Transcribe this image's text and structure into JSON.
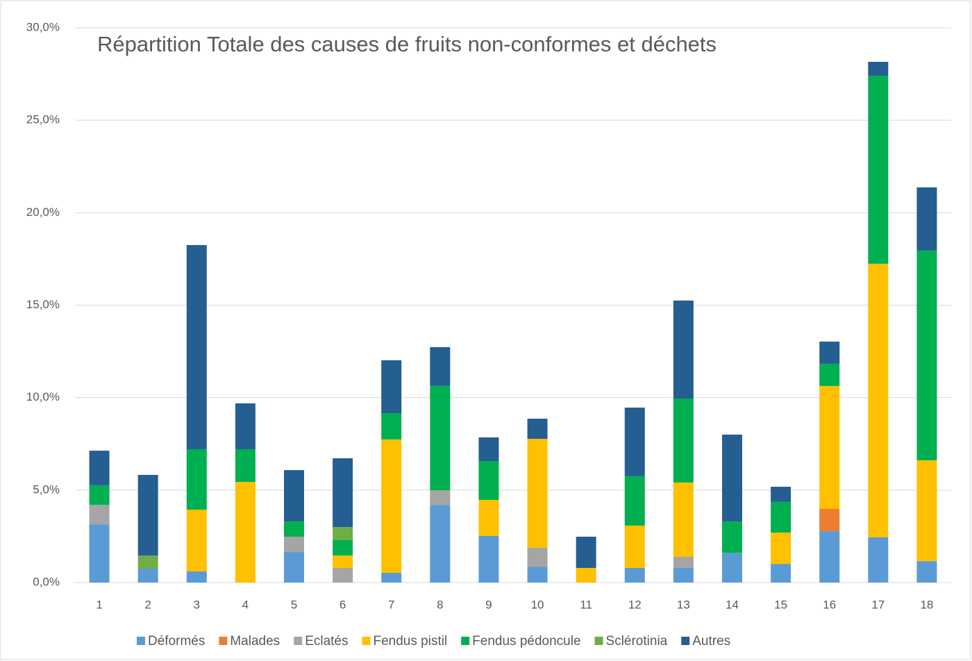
{
  "chart_data": {
    "type": "stacked_bar",
    "title": "Répartition Totale des causes de fruits non-conformes et déchets",
    "categories": [
      "1",
      "2",
      "3",
      "4",
      "5",
      "6",
      "7",
      "8",
      "9",
      "10",
      "11",
      "12",
      "13",
      "14",
      "15",
      "16",
      "17",
      "18"
    ],
    "series": [
      {
        "name": "Déformés",
        "color": "#5b9bd5",
        "values": [
          3.15,
          0.75,
          0.6,
          0,
          1.65,
          0,
          0.53,
          4.2,
          2.52,
          0.86,
          0,
          0.79,
          0.79,
          1.61,
          1.01,
          2.78,
          2.44,
          1.16
        ]
      },
      {
        "name": "Malades",
        "color": "#ed7d31",
        "values": [
          0,
          0,
          0,
          0,
          0,
          0,
          0,
          0,
          0,
          0,
          0,
          0,
          0,
          0,
          0,
          1.2,
          0,
          0
        ]
      },
      {
        "name": "Eclatés",
        "color": "#a5a5a5",
        "values": [
          1.05,
          0,
          0,
          0,
          0.83,
          0.79,
          0,
          0.79,
          0,
          1.02,
          0,
          0,
          0.6,
          0,
          0,
          0,
          0,
          0
        ]
      },
      {
        "name": "Fendus pistil",
        "color": "#ffc000",
        "values": [
          0,
          0,
          3.34,
          5.44,
          0,
          0.67,
          7.21,
          0,
          1.95,
          5.89,
          0.79,
          2.29,
          4.02,
          0,
          1.69,
          6.65,
          14.8,
          5.45
        ]
      },
      {
        "name": "Fendus pédoncule",
        "color": "#00b050",
        "values": [
          1.06,
          0,
          3.27,
          1.77,
          0.82,
          0.83,
          1.42,
          5.64,
          2.1,
          0,
          0,
          2.67,
          4.54,
          1.69,
          1.66,
          1.2,
          10.17,
          11.34
        ]
      },
      {
        "name": "Sclérotinia",
        "color": "#70ad47",
        "values": [
          0,
          0.71,
          0,
          0,
          0,
          0.71,
          0,
          0,
          0,
          0,
          0,
          0,
          0,
          0,
          0,
          0,
          0,
          0
        ]
      },
      {
        "name": "Autres",
        "color": "#255e91",
        "values": [
          1.87,
          4.36,
          11.04,
          2.48,
          2.78,
          3.72,
          2.86,
          2.1,
          1.28,
          1.09,
          1.69,
          3.71,
          5.3,
          4.7,
          0.82,
          1.2,
          0.75,
          3.42
        ]
      }
    ],
    "ylim": [
      0,
      30
    ],
    "yticks": [
      {
        "value": 0,
        "label": "0,0%"
      },
      {
        "value": 5,
        "label": "5,0%"
      },
      {
        "value": 10,
        "label": "10,0%"
      },
      {
        "value": 15,
        "label": "15,0%"
      },
      {
        "value": 20,
        "label": "20,0%"
      },
      {
        "value": 25,
        "label": "25,0%"
      },
      {
        "value": 30,
        "label": "30,0%"
      }
    ],
    "grid": true,
    "legend": "bottom"
  }
}
